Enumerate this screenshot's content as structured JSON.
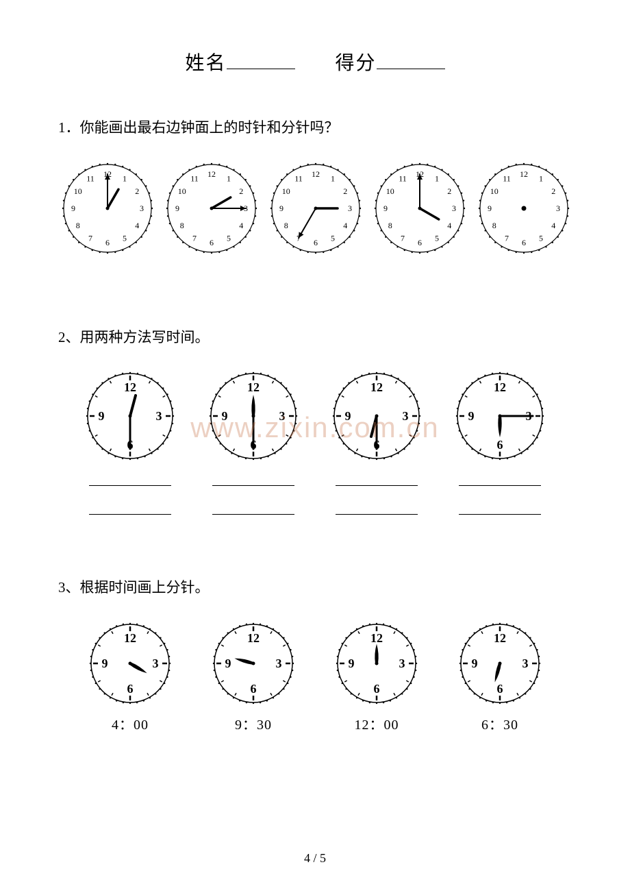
{
  "header": {
    "name_label": "姓名",
    "score_label": "得分"
  },
  "q1": {
    "text": "1．你能画出最右边钟面上的时针和分针吗？",
    "clocks": [
      {
        "numbers": "full",
        "hour_angle": 30,
        "minute_angle": 0,
        "has_hands": true,
        "size": 144
      },
      {
        "numbers": "full",
        "hour_angle": 60,
        "minute_angle": 90,
        "has_hands": true,
        "size": 144
      },
      {
        "numbers": "full",
        "hour_angle": 90,
        "minute_angle": 210,
        "has_hands": true,
        "size": 144
      },
      {
        "numbers": "full",
        "hour_angle": 120,
        "minute_angle": 0,
        "has_hands": true,
        "size": 144
      },
      {
        "numbers": "full",
        "hour_angle": 0,
        "minute_angle": 0,
        "has_hands": false,
        "size": 144,
        "center_dot": true
      }
    ],
    "stroke": "#000000",
    "fill": "#ffffff"
  },
  "q2": {
    "text": "2、用两种方法写时间。",
    "clocks": [
      {
        "numbers": "quarter",
        "hour_angle": 15,
        "minute_angle": 180,
        "has_hands": true,
        "size": 140
      },
      {
        "numbers": "quarter",
        "hour_angle": 0,
        "minute_angle": 180,
        "has_hands": true,
        "size": 140,
        "hour_shape": "thick"
      },
      {
        "numbers": "quarter",
        "hour_angle": 195,
        "minute_angle": 180,
        "has_hands": true,
        "size": 140
      },
      {
        "numbers": "quarter",
        "hour_angle": 180,
        "minute_angle": 90,
        "has_hands": true,
        "size": 140,
        "hour_shape": "thick"
      }
    ],
    "stroke": "#000000"
  },
  "q3": {
    "text": "3、根据时间画上分针。",
    "clocks": [
      {
        "numbers": "quarter",
        "hour_angle": 120,
        "minute_angle": null,
        "hour_only": true,
        "size": 130,
        "label": "4：00"
      },
      {
        "numbers": "quarter",
        "hour_angle": 285,
        "minute_angle": null,
        "hour_only": true,
        "size": 130,
        "label": "9：30",
        "hour_shape": "thick"
      },
      {
        "numbers": "quarter",
        "hour_angle": 0,
        "minute_angle": null,
        "hour_only": true,
        "size": 130,
        "label": "12：00",
        "hour_shape": "thick"
      },
      {
        "numbers": "quarter",
        "hour_angle": 195,
        "minute_angle": null,
        "hour_only": true,
        "size": 130,
        "label": "6：30",
        "hour_shape": "thick"
      }
    ],
    "stroke": "#000000"
  },
  "watermark": "www.zixin.com.cn",
  "page_number": "4 / 5",
  "colors": {
    "text": "#000000",
    "bg": "#ffffff",
    "watermark": "rgba(200,120,80,0.35)"
  }
}
